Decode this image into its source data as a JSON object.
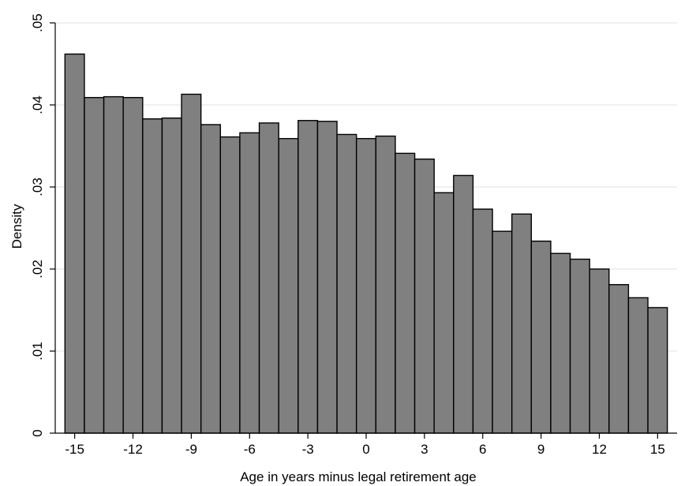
{
  "chart_data": {
    "type": "bar",
    "xlabel": "Age in years minus legal retirement age",
    "ylabel": "Density",
    "x": [
      -15,
      -14,
      -13,
      -12,
      -11,
      -10,
      -9,
      -8,
      -7,
      -6,
      -5,
      -4,
      -3,
      -2,
      -1,
      0,
      1,
      2,
      3,
      4,
      5,
      6,
      7,
      8,
      9,
      10,
      11,
      12,
      13,
      14,
      15
    ],
    "values": [
      0.0462,
      0.0409,
      0.041,
      0.0409,
      0.0383,
      0.0384,
      0.0413,
      0.0376,
      0.0361,
      0.0366,
      0.0378,
      0.0359,
      0.0381,
      0.038,
      0.0364,
      0.0359,
      0.0362,
      0.0341,
      0.0334,
      0.0293,
      0.0314,
      0.0273,
      0.0246,
      0.0267,
      0.0234,
      0.0219,
      0.0212,
      0.02,
      0.0181,
      0.0165,
      0.0153
    ],
    "xlim": [
      -16,
      16
    ],
    "ylim": [
      0,
      0.05
    ],
    "xticks": [
      -15,
      -12,
      -9,
      -6,
      -3,
      0,
      3,
      6,
      9,
      12,
      15
    ],
    "xtick_labels": [
      "-15",
      "-12",
      "-9",
      "-6",
      "-3",
      "0",
      "3",
      "6",
      "9",
      "12",
      "15"
    ],
    "yticks": [
      0,
      0.01,
      0.02,
      0.03,
      0.04,
      0.05
    ],
    "ytick_labels": [
      "0",
      ".01",
      ".02",
      ".03",
      ".04",
      ".05"
    ],
    "grid": true,
    "bar_color": "#808080",
    "bar_edge_color": "#000000",
    "grid_color": "#e6e6e6"
  }
}
